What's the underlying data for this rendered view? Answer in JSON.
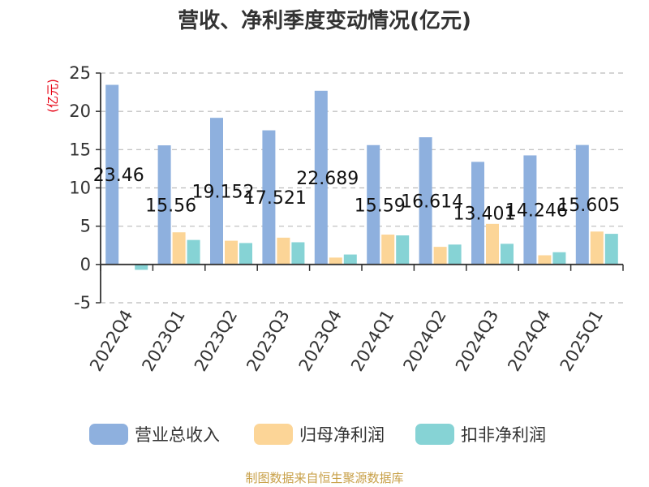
{
  "title": "营收、净利季度变动情况(亿元)",
  "unit_label": "(亿元)",
  "source": "制图数据来自恒生聚源数据库",
  "colors": {
    "revenue": "#8eb0de",
    "net_profit": "#fcd597",
    "deducted": "#86d3d5"
  },
  "chart_data": {
    "type": "bar",
    "title": "营收、净利季度变动情况(亿元)",
    "ylabel": "(亿元)",
    "ylim": [
      -5,
      25
    ],
    "yticks": [
      25,
      20,
      15,
      10,
      5,
      0,
      -5
    ],
    "grid": true,
    "legend": "bottom",
    "categories": [
      "2022Q4",
      "2023Q1",
      "2023Q2",
      "2023Q3",
      "2023Q4",
      "2024Q1",
      "2024Q2",
      "2024Q3",
      "2024Q4",
      "2025Q1"
    ],
    "series": [
      {
        "name": "营业总收入",
        "values": [
          23.46,
          15.56,
          19.152,
          17.521,
          22.689,
          15.59,
          16.614,
          13.401,
          14.246,
          15.605
        ],
        "labels": [
          "23.46",
          "15.56",
          "19.152",
          "17.521",
          "22.689",
          "15.59",
          "16.614",
          "13.401",
          "14.246",
          "15.605"
        ]
      },
      {
        "name": "归母净利润",
        "values": [
          0,
          4.2,
          3.1,
          3.5,
          0.9,
          3.9,
          2.3,
          5.3,
          1.2,
          4.3
        ]
      },
      {
        "name": "扣非净利润",
        "values": [
          -0.7,
          3.2,
          2.8,
          2.9,
          1.3,
          3.8,
          2.6,
          2.7,
          1.6,
          4.0
        ]
      }
    ]
  }
}
